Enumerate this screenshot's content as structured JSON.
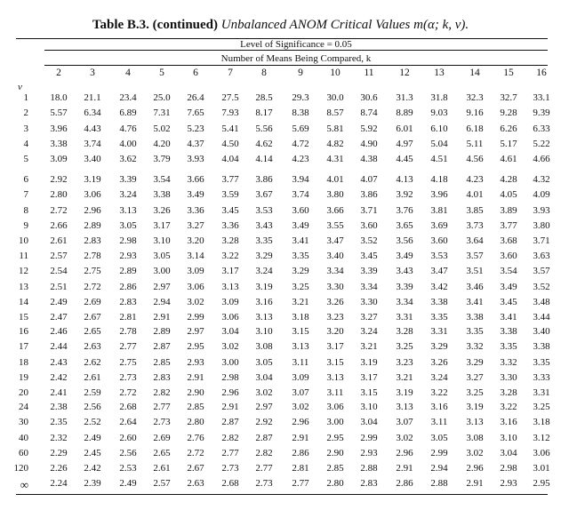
{
  "title": {
    "bold": "Table B.3. (continued)",
    "italic": "Unbalanced ANOM Critical Values m(α; k, ν)."
  },
  "level_caption": "Level of Significance = 0.05",
  "means_caption": "Number of Means Being Compared, k",
  "nu_label": "ν",
  "column_headers": [
    "2",
    "3",
    "4",
    "5",
    "6",
    "7",
    "8",
    "9",
    "10",
    "11",
    "12",
    "13",
    "14",
    "15",
    "16"
  ],
  "rows": [
    {
      "nu": "1",
      "values": [
        "18.0",
        "21.1",
        "23.4",
        "25.0",
        "26.4",
        "27.5",
        "28.5",
        "29.3",
        "30.0",
        "30.6",
        "31.3",
        "31.8",
        "32.3",
        "32.7",
        "33.1"
      ]
    },
    {
      "nu": "2",
      "values": [
        "5.57",
        "6.34",
        "6.89",
        "7.31",
        "7.65",
        "7.93",
        "8.17",
        "8.38",
        "8.57",
        "8.74",
        "8.89",
        "9.03",
        "9.16",
        "9.28",
        "9.39"
      ]
    },
    {
      "nu": "3",
      "values": [
        "3.96",
        "4.43",
        "4.76",
        "5.02",
        "5.23",
        "5.41",
        "5.56",
        "5.69",
        "5.81",
        "5.92",
        "6.01",
        "6.10",
        "6.18",
        "6.26",
        "6.33"
      ]
    },
    {
      "nu": "4",
      "values": [
        "3.38",
        "3.74",
        "4.00",
        "4.20",
        "4.37",
        "4.50",
        "4.62",
        "4.72",
        "4.82",
        "4.90",
        "4.97",
        "5.04",
        "5.11",
        "5.17",
        "5.22"
      ]
    },
    {
      "nu": "5",
      "values": [
        "3.09",
        "3.40",
        "3.62",
        "3.79",
        "3.93",
        "4.04",
        "4.14",
        "4.23",
        "4.31",
        "4.38",
        "4.45",
        "4.51",
        "4.56",
        "4.61",
        "4.66"
      ]
    },
    {
      "nu": "6",
      "values": [
        "2.92",
        "3.19",
        "3.39",
        "3.54",
        "3.66",
        "3.77",
        "3.86",
        "3.94",
        "4.01",
        "4.07",
        "4.13",
        "4.18",
        "4.23",
        "4.28",
        "4.32"
      ]
    },
    {
      "nu": "7",
      "values": [
        "2.80",
        "3.06",
        "3.24",
        "3.38",
        "3.49",
        "3.59",
        "3.67",
        "3.74",
        "3.80",
        "3.86",
        "3.92",
        "3.96",
        "4.01",
        "4.05",
        "4.09"
      ]
    },
    {
      "nu": "8",
      "values": [
        "2.72",
        "2.96",
        "3.13",
        "3.26",
        "3.36",
        "3.45",
        "3.53",
        "3.60",
        "3.66",
        "3.71",
        "3.76",
        "3.81",
        "3.85",
        "3.89",
        "3.93"
      ]
    },
    {
      "nu": "9",
      "values": [
        "2.66",
        "2.89",
        "3.05",
        "3.17",
        "3.27",
        "3.36",
        "3.43",
        "3.49",
        "3.55",
        "3.60",
        "3.65",
        "3.69",
        "3.73",
        "3.77",
        "3.80"
      ]
    },
    {
      "nu": "10",
      "values": [
        "2.61",
        "2.83",
        "2.98",
        "3.10",
        "3.20",
        "3.28",
        "3.35",
        "3.41",
        "3.47",
        "3.52",
        "3.56",
        "3.60",
        "3.64",
        "3.68",
        "3.71"
      ]
    },
    {
      "nu": "11",
      "values": [
        "2.57",
        "2.78",
        "2.93",
        "3.05",
        "3.14",
        "3.22",
        "3.29",
        "3.35",
        "3.40",
        "3.45",
        "3.49",
        "3.53",
        "3.57",
        "3.60",
        "3.63"
      ]
    },
    {
      "nu": "12",
      "values": [
        "2.54",
        "2.75",
        "2.89",
        "3.00",
        "3.09",
        "3.17",
        "3.24",
        "3.29",
        "3.34",
        "3.39",
        "3.43",
        "3.47",
        "3.51",
        "3.54",
        "3.57"
      ]
    },
    {
      "nu": "13",
      "values": [
        "2.51",
        "2.72",
        "2.86",
        "2.97",
        "3.06",
        "3.13",
        "3.19",
        "3.25",
        "3.30",
        "3.34",
        "3.39",
        "3.42",
        "3.46",
        "3.49",
        "3.52"
      ]
    },
    {
      "nu": "14",
      "values": [
        "2.49",
        "2.69",
        "2.83",
        "2.94",
        "3.02",
        "3.09",
        "3.16",
        "3.21",
        "3.26",
        "3.30",
        "3.34",
        "3.38",
        "3.41",
        "3.45",
        "3.48"
      ]
    },
    {
      "nu": "15",
      "values": [
        "2.47",
        "2.67",
        "2.81",
        "2.91",
        "2.99",
        "3.06",
        "3.13",
        "3.18",
        "3.23",
        "3.27",
        "3.31",
        "3.35",
        "3.38",
        "3.41",
        "3.44"
      ]
    },
    {
      "nu": "16",
      "values": [
        "2.46",
        "2.65",
        "2.78",
        "2.89",
        "2.97",
        "3.04",
        "3.10",
        "3.15",
        "3.20",
        "3.24",
        "3.28",
        "3.31",
        "3.35",
        "3.38",
        "3.40"
      ]
    },
    {
      "nu": "17",
      "values": [
        "2.44",
        "2.63",
        "2.77",
        "2.87",
        "2.95",
        "3.02",
        "3.08",
        "3.13",
        "3.17",
        "3.21",
        "3.25",
        "3.29",
        "3.32",
        "3.35",
        "3.38"
      ]
    },
    {
      "nu": "18",
      "values": [
        "2.43",
        "2.62",
        "2.75",
        "2.85",
        "2.93",
        "3.00",
        "3.05",
        "3.11",
        "3.15",
        "3.19",
        "3.23",
        "3.26",
        "3.29",
        "3.32",
        "3.35"
      ]
    },
    {
      "nu": "19",
      "values": [
        "2.42",
        "2.61",
        "2.73",
        "2.83",
        "2.91",
        "2.98",
        "3.04",
        "3.09",
        "3.13",
        "3.17",
        "3.21",
        "3.24",
        "3.27",
        "3.30",
        "3.33"
      ]
    },
    {
      "nu": "20",
      "values": [
        "2.41",
        "2.59",
        "2.72",
        "2.82",
        "2.90",
        "2.96",
        "3.02",
        "3.07",
        "3.11",
        "3.15",
        "3.19",
        "3.22",
        "3.25",
        "3.28",
        "3.31"
      ]
    },
    {
      "nu": "24",
      "values": [
        "2.38",
        "2.56",
        "2.68",
        "2.77",
        "2.85",
        "2.91",
        "2.97",
        "3.02",
        "3.06",
        "3.10",
        "3.13",
        "3.16",
        "3.19",
        "3.22",
        "3.25"
      ]
    },
    {
      "nu": "30",
      "values": [
        "2.35",
        "2.52",
        "2.64",
        "2.73",
        "2.80",
        "2.87",
        "2.92",
        "2.96",
        "3.00",
        "3.04",
        "3.07",
        "3.11",
        "3.13",
        "3.16",
        "3.18"
      ]
    },
    {
      "nu": "40",
      "values": [
        "2.32",
        "2.49",
        "2.60",
        "2.69",
        "2.76",
        "2.82",
        "2.87",
        "2.91",
        "2.95",
        "2.99",
        "3.02",
        "3.05",
        "3.08",
        "3.10",
        "3.12"
      ]
    },
    {
      "nu": "60",
      "values": [
        "2.29",
        "2.45",
        "2.56",
        "2.65",
        "2.72",
        "2.77",
        "2.82",
        "2.86",
        "2.90",
        "2.93",
        "2.96",
        "2.99",
        "3.02",
        "3.04",
        "3.06"
      ]
    },
    {
      "nu": "120",
      "values": [
        "2.26",
        "2.42",
        "2.53",
        "2.61",
        "2.67",
        "2.73",
        "2.77",
        "2.81",
        "2.85",
        "2.88",
        "2.91",
        "2.94",
        "2.96",
        "2.98",
        "3.01"
      ]
    },
    {
      "nu": "∞",
      "values": [
        "2.24",
        "2.39",
        "2.49",
        "2.57",
        "2.63",
        "2.68",
        "2.73",
        "2.77",
        "2.80",
        "2.83",
        "2.86",
        "2.88",
        "2.91",
        "2.93",
        "2.95"
      ]
    }
  ]
}
